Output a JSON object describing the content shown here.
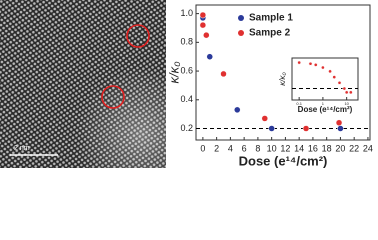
{
  "image": {
    "scale_bar": "2 nm"
  },
  "chart_data": [
    {
      "type": "scatter",
      "xlabel": "Dose (e¹⁴/cm²)",
      "ylabel": "κ/κ₀",
      "xlim": [
        -1,
        24.3
      ],
      "ylim": [
        0.12,
        1.06
      ],
      "xticks": [
        0,
        2,
        4,
        6,
        8,
        10,
        12,
        14,
        16,
        18,
        20,
        22,
        24
      ],
      "yticks": [
        0.2,
        0.4,
        0.6,
        0.8,
        {
          "value": 1,
          "label": "1.0"
        }
      ],
      "hline": 0.2,
      "legend": "top-left",
      "series": [
        {
          "name": "Sample 1",
          "color": "#2b3a9a",
          "x": [
            0,
            1,
            5,
            10,
            20
          ],
          "values": [
            0.97,
            0.7,
            0.33,
            0.2,
            0.2
          ]
        },
        {
          "name": "Sampe 2",
          "color": "#e03030",
          "x": [
            0,
            0,
            0.5,
            3,
            9,
            15,
            19.8
          ],
          "values": [
            0.99,
            0.92,
            0.85,
            0.58,
            0.27,
            0.2,
            0.24
          ]
        }
      ]
    },
    {
      "type": "scatter",
      "xlabel": "Dose (e¹⁴/cm²)",
      "ylabel": "κ/κ₀",
      "xlog": true,
      "xlim": [
        0.05,
        30
      ],
      "ylim": [
        0,
        1.1
      ],
      "xticks": [
        0.1,
        1,
        10
      ],
      "hline": 0.3,
      "color": "#e03030",
      "x": [
        0.1,
        0.3,
        0.5,
        1,
        2,
        3,
        5,
        8,
        10,
        15
      ],
      "values": [
        0.98,
        0.95,
        0.92,
        0.85,
        0.75,
        0.6,
        0.45,
        0.3,
        0.2,
        0.2
      ]
    }
  ]
}
